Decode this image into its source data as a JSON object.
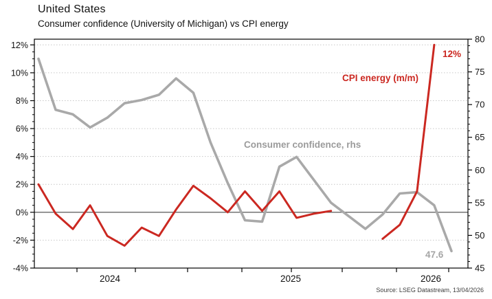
{
  "header": {
    "title": "United States",
    "subtitle": "Consumer confidence (University of Michigan) vs CPI energy"
  },
  "source": "Source: LSEG Datastream, 13/04/2026",
  "colors": {
    "cpi_energy_red": "#cb2821",
    "confidence_gray": "#a9a9a9",
    "grid": "#c6c6c6",
    "zero_line": "#666666",
    "axis_frame": "#000000"
  },
  "chart_data": {
    "type": "line",
    "title": "United States",
    "subtitle": "Consumer confidence (University of Michigan) vs CPI energy",
    "x_axis": {
      "tick_labels": [
        "2024",
        "2025",
        "2026"
      ],
      "note": "monthly points, sequential left to right"
    },
    "left_axis": {
      "min": -4,
      "max": 12,
      "tick_step": 2,
      "tick_labels": [
        "12%",
        "10%",
        "8%",
        "6%",
        "4%",
        "2%",
        "0%",
        "-2%",
        "-4%"
      ],
      "grid": "dotted horizontal at each 2% step",
      "zero_line": true
    },
    "right_axis": {
      "min": 45,
      "max": 80,
      "tick_step": 5,
      "tick_labels": [
        "80",
        "75",
        "70",
        "65",
        "60",
        "55",
        "50",
        "45"
      ]
    },
    "series": [
      {
        "name": "CPI energy (m/m)",
        "axis": "left",
        "color": "#cb2821",
        "end_label": "12%",
        "values": [
          2.0,
          -0.1,
          -1.2,
          0.5,
          -1.7,
          -2.4,
          -1.1,
          -1.7,
          0.2,
          1.9,
          1.0,
          0.0,
          1.5,
          0.1,
          1.5,
          -0.4,
          -0.1,
          0.1,
          null,
          null,
          -1.9,
          -0.9,
          1.5,
          12.0,
          null
        ]
      },
      {
        "name": "Consumer confidence, rhs",
        "axis": "right",
        "color": "#a9a9a9",
        "end_label": "47.6",
        "values": [
          77,
          69.2,
          68.5,
          66.5,
          68,
          70.2,
          70.7,
          71.5,
          74,
          71.8,
          64.2,
          58,
          52.3,
          52.1,
          60.5,
          62,
          58.5,
          55,
          53,
          51,
          53.2,
          56.4,
          56.6,
          54.6,
          47.6
        ]
      }
    ],
    "legend_annotations": [
      "CPI energy (m/m)",
      "Consumer confidence, rhs"
    ]
  }
}
